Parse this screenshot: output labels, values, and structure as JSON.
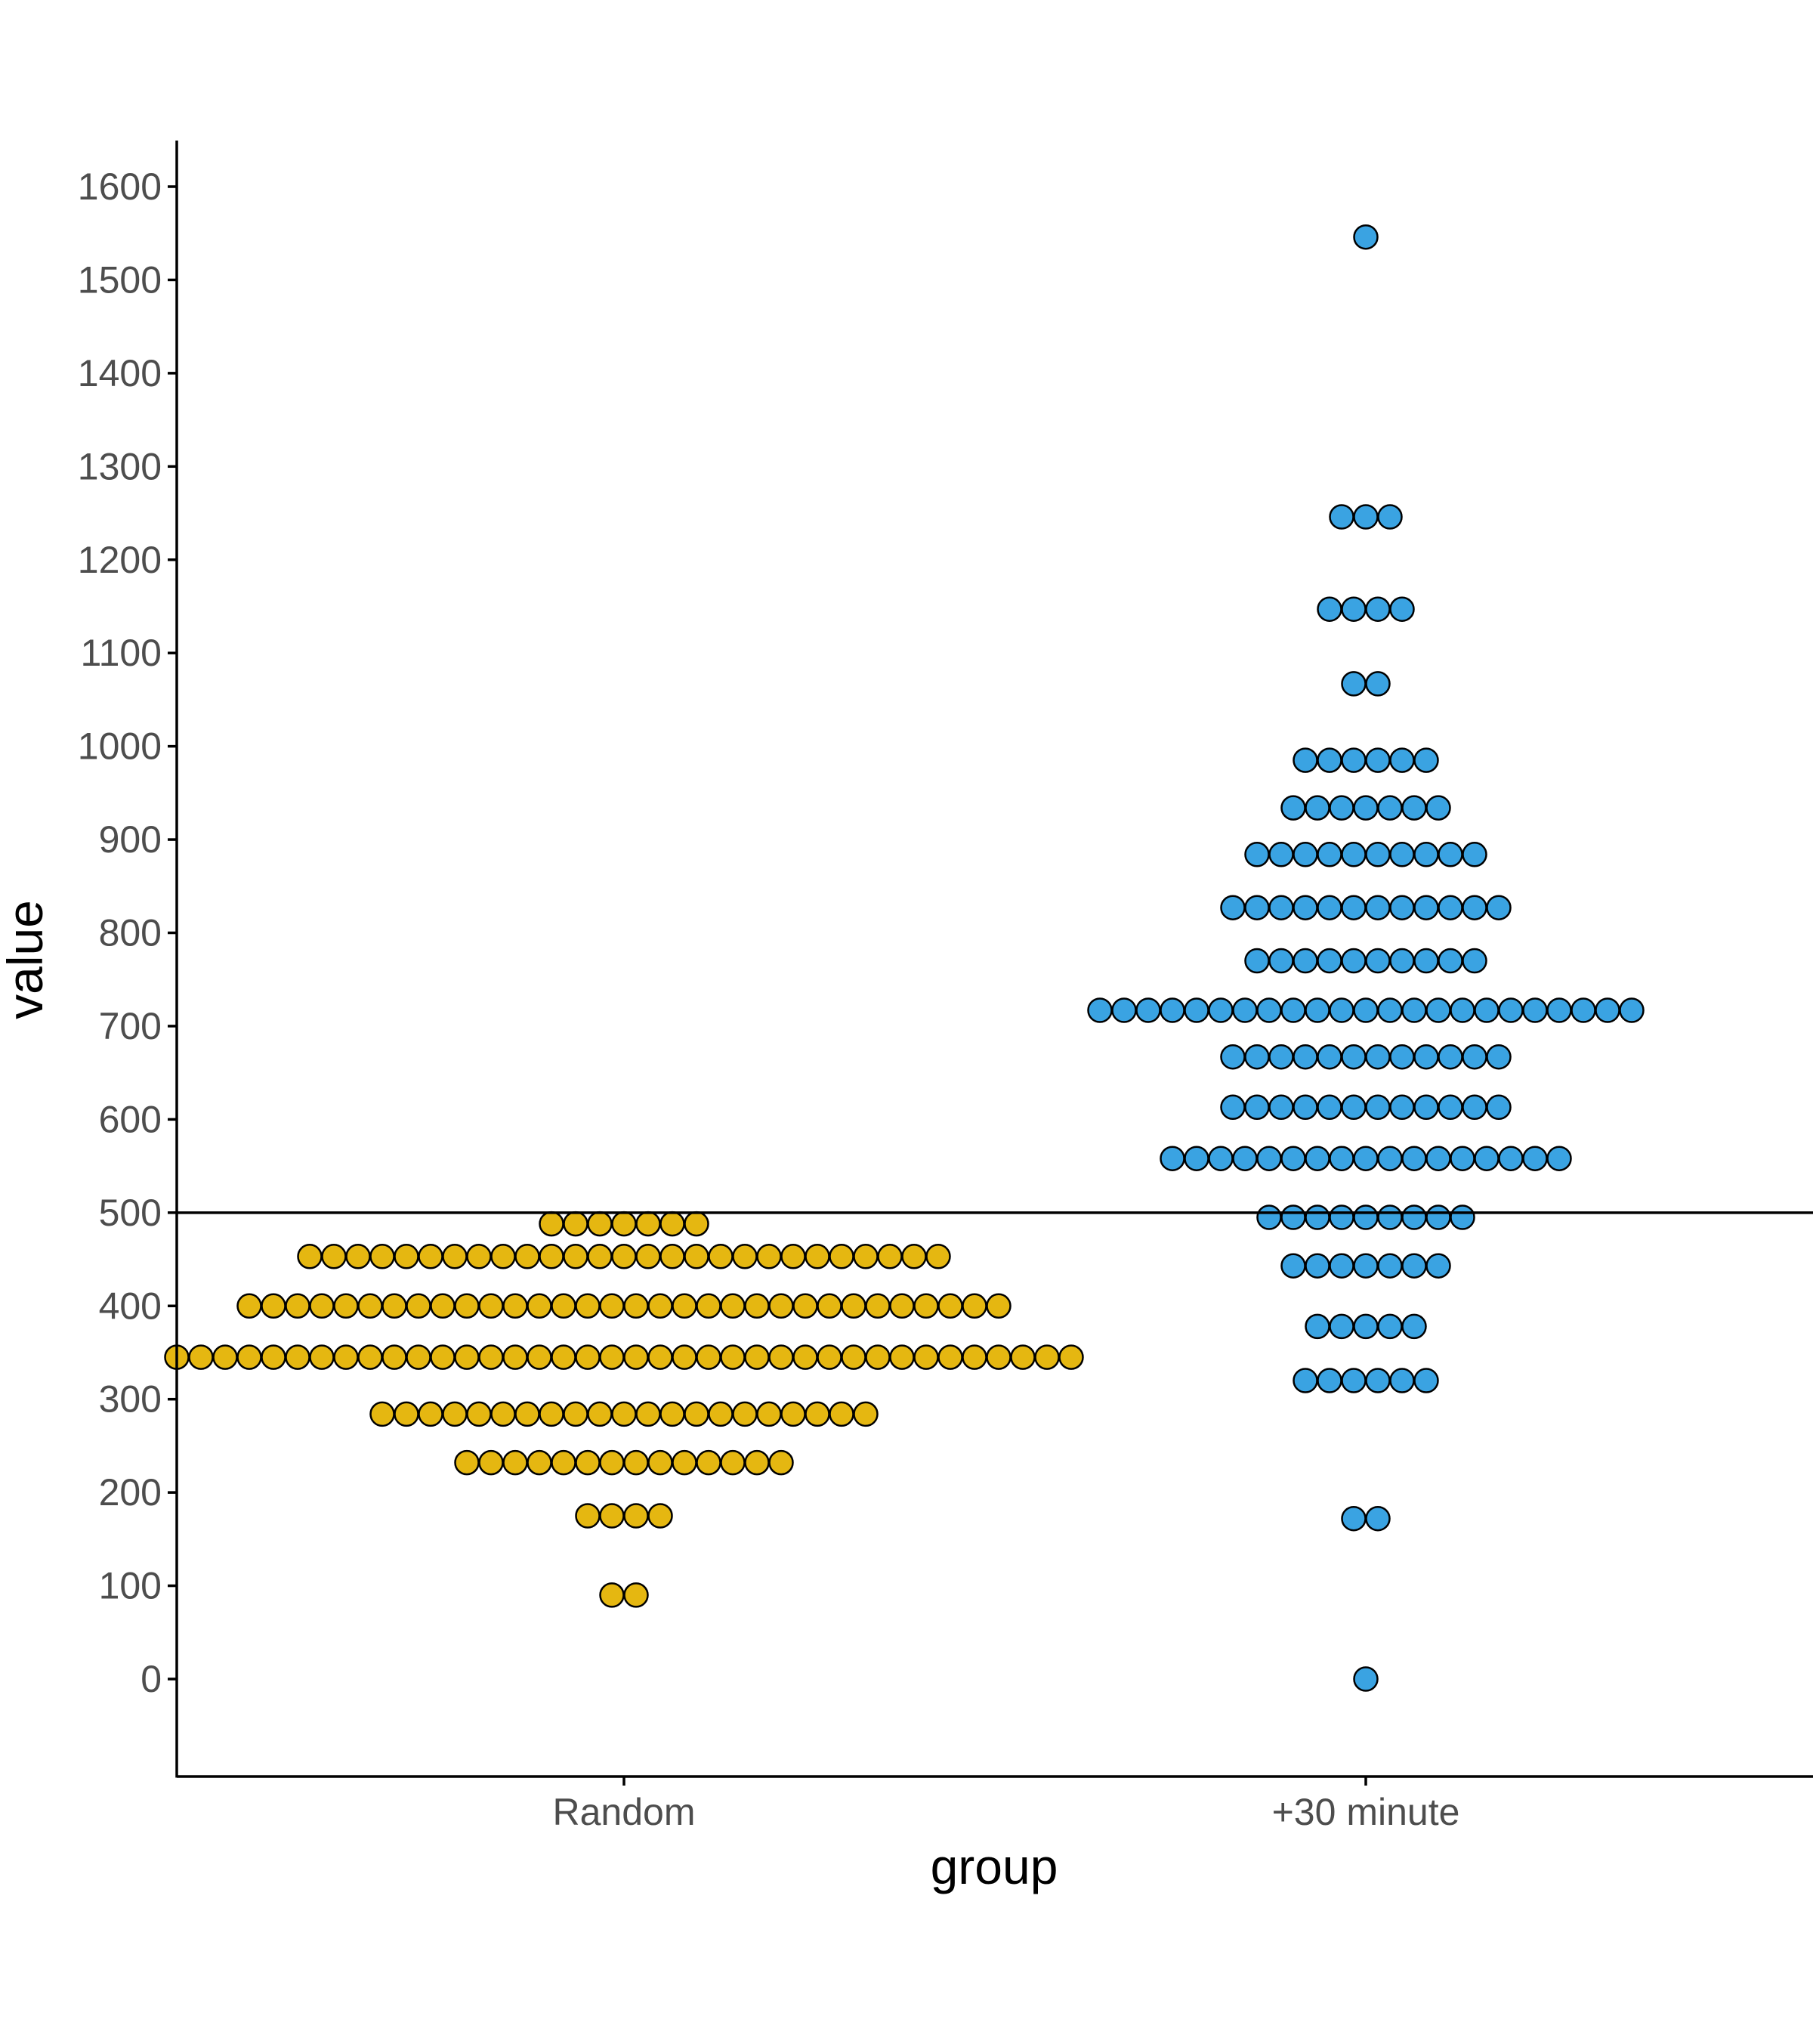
{
  "chart_data": {
    "type": "dotplot",
    "xlabel": "group",
    "ylabel": "value",
    "categories": [
      "Random",
      "+30 minute"
    ],
    "yticks": [
      0,
      100,
      200,
      300,
      400,
      500,
      600,
      700,
      800,
      900,
      1000,
      1100,
      1200,
      1300,
      1400,
      1500,
      1600
    ],
    "ylim": [
      -105,
      1650
    ],
    "grid": false,
    "reference_line": {
      "y": 500
    },
    "colors": {
      "Random": "#E5B711",
      "+30 minute": "#3AA3E2"
    },
    "series": [
      {
        "category": "Random",
        "bins": [
          {
            "value": 90,
            "count": 2
          },
          {
            "value": 175,
            "count": 4
          },
          {
            "value": 232,
            "count": 14
          },
          {
            "value": 284,
            "count": 21
          },
          {
            "value": 345,
            "count": 38
          },
          {
            "value": 400,
            "count": 32
          },
          {
            "value": 453,
            "count": 27
          },
          {
            "value": 488,
            "count": 7
          }
        ]
      },
      {
        "category": "+30 minute",
        "bins": [
          {
            "value": 0,
            "count": 1
          },
          {
            "value": 172,
            "count": 2
          },
          {
            "value": 320,
            "count": 6
          },
          {
            "value": 378,
            "count": 5
          },
          {
            "value": 443,
            "count": 7
          },
          {
            "value": 495,
            "count": 9
          },
          {
            "value": 558,
            "count": 17
          },
          {
            "value": 613,
            "count": 12
          },
          {
            "value": 667,
            "count": 12
          },
          {
            "value": 717,
            "count": 23
          },
          {
            "value": 770,
            "count": 10
          },
          {
            "value": 827,
            "count": 12
          },
          {
            "value": 884,
            "count": 10
          },
          {
            "value": 934,
            "count": 7
          },
          {
            "value": 985,
            "count": 6
          },
          {
            "value": 1067,
            "count": 2
          },
          {
            "value": 1147,
            "count": 4
          },
          {
            "value": 1246,
            "count": 3
          },
          {
            "value": 1546,
            "count": 1
          }
        ]
      }
    ]
  }
}
